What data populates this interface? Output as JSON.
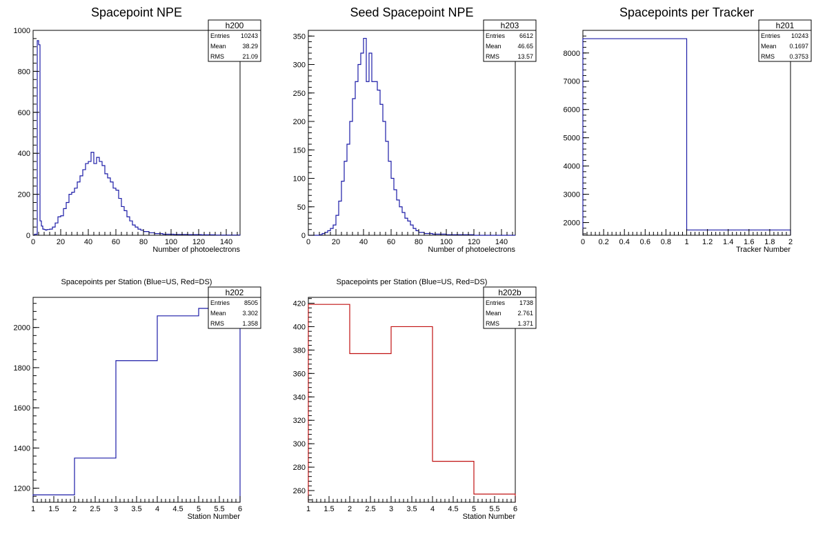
{
  "chart_data": [
    {
      "type": "histogram",
      "title": "Spacepoint NPE",
      "xlabel": "Number of photoelectrons",
      "ylabel": "",
      "xlim": [
        0,
        150
      ],
      "ylim": [
        0,
        1000
      ],
      "xticks": [
        0,
        20,
        40,
        60,
        80,
        100,
        120,
        140
      ],
      "yticks": [
        0,
        200,
        400,
        600,
        800,
        1000
      ],
      "color": "#1a1aa6",
      "stats": {
        "name": "h200",
        "rows": [
          [
            "Entries",
            "10243"
          ],
          [
            "Mean",
            "38.29"
          ],
          [
            "RMS",
            "21.09"
          ]
        ]
      },
      "bin_width": 1,
      "series": [
        {
          "bins": [
            [
              0,
              1,
              0
            ],
            [
              1,
              3,
              5
            ],
            [
              3,
              4,
              950
            ],
            [
              4,
              5,
              930
            ],
            [
              5,
              6,
              70
            ],
            [
              6,
              7,
              45
            ],
            [
              7,
              8,
              30
            ],
            [
              8,
              9,
              28
            ],
            [
              9,
              10,
              25
            ],
            [
              10,
              12,
              28
            ],
            [
              12,
              14,
              30
            ],
            [
              14,
              16,
              40
            ],
            [
              16,
              18,
              60
            ],
            [
              18,
              20,
              90
            ],
            [
              20,
              22,
              95
            ],
            [
              22,
              24,
              130
            ],
            [
              24,
              26,
              160
            ],
            [
              26,
              28,
              200
            ],
            [
              28,
              30,
              210
            ],
            [
              30,
              32,
              230
            ],
            [
              32,
              34,
              260
            ],
            [
              34,
              36,
              290
            ],
            [
              36,
              38,
              320
            ],
            [
              38,
              40,
              350
            ],
            [
              40,
              42,
              360
            ],
            [
              42,
              44,
              405
            ],
            [
              44,
              46,
              350
            ],
            [
              46,
              48,
              380
            ],
            [
              48,
              50,
              360
            ],
            [
              50,
              52,
              340
            ],
            [
              52,
              54,
              300
            ],
            [
              54,
              56,
              280
            ],
            [
              56,
              58,
              260
            ],
            [
              58,
              60,
              230
            ],
            [
              60,
              62,
              220
            ],
            [
              62,
              64,
              180
            ],
            [
              64,
              66,
              140
            ],
            [
              66,
              68,
              120
            ],
            [
              68,
              70,
              90
            ],
            [
              70,
              72,
              70
            ],
            [
              72,
              74,
              50
            ],
            [
              74,
              76,
              40
            ],
            [
              76,
              78,
              30
            ],
            [
              78,
              80,
              25
            ],
            [
              80,
              84,
              18
            ],
            [
              84,
              88,
              12
            ],
            [
              88,
              94,
              8
            ],
            [
              94,
              102,
              5
            ],
            [
              102,
              112,
              4
            ],
            [
              112,
              122,
              3
            ],
            [
              122,
              132,
              2
            ],
            [
              132,
              150,
              1
            ]
          ]
        }
      ]
    },
    {
      "type": "histogram",
      "title": "Seed Spacepoint NPE",
      "xlabel": "Number of photoelectrons",
      "ylabel": "",
      "xlim": [
        0,
        150
      ],
      "ylim": [
        0,
        360
      ],
      "xticks": [
        0,
        20,
        40,
        60,
        80,
        100,
        120,
        140
      ],
      "yticks": [
        0,
        50,
        100,
        150,
        200,
        250,
        300,
        350
      ],
      "color": "#1a1aa6",
      "stats": {
        "name": "h203",
        "rows": [
          [
            "Entries",
            "6612"
          ],
          [
            "Mean",
            "46.65"
          ],
          [
            "RMS",
            "13.57"
          ]
        ]
      },
      "series": [
        {
          "bins": [
            [
              0,
              8,
              0
            ],
            [
              8,
              10,
              1
            ],
            [
              10,
              12,
              3
            ],
            [
              12,
              14,
              5
            ],
            [
              14,
              16,
              8
            ],
            [
              16,
              18,
              12
            ],
            [
              18,
              20,
              18
            ],
            [
              20,
              22,
              35
            ],
            [
              22,
              24,
              60
            ],
            [
              24,
              26,
              95
            ],
            [
              26,
              28,
              130
            ],
            [
              28,
              30,
              160
            ],
            [
              30,
              32,
              200
            ],
            [
              32,
              34,
              240
            ],
            [
              34,
              36,
              270
            ],
            [
              36,
              38,
              300
            ],
            [
              38,
              40,
              320
            ],
            [
              40,
              42,
              346
            ],
            [
              42,
              44,
              270
            ],
            [
              44,
              46,
              320
            ],
            [
              46,
              48,
              270
            ],
            [
              48,
              50,
              270
            ],
            [
              50,
              52,
              255
            ],
            [
              52,
              54,
              230
            ],
            [
              54,
              56,
              200
            ],
            [
              56,
              58,
              165
            ],
            [
              58,
              60,
              130
            ],
            [
              60,
              62,
              100
            ],
            [
              62,
              64,
              80
            ],
            [
              64,
              66,
              62
            ],
            [
              66,
              68,
              50
            ],
            [
              68,
              70,
              40
            ],
            [
              70,
              72,
              30
            ],
            [
              72,
              74,
              25
            ],
            [
              74,
              76,
              18
            ],
            [
              76,
              78,
              12
            ],
            [
              78,
              80,
              8
            ],
            [
              80,
              84,
              5
            ],
            [
              84,
              90,
              3
            ],
            [
              90,
              100,
              2
            ],
            [
              100,
              120,
              1
            ],
            [
              120,
              150,
              0
            ]
          ]
        }
      ]
    },
    {
      "type": "histogram",
      "title": "Spacepoints per Tracker",
      "xlabel": "Tracker Number",
      "ylabel": "",
      "xlim": [
        0,
        2
      ],
      "ylim": [
        1550,
        8800
      ],
      "xticks": [
        0,
        0.2,
        0.4,
        0.6,
        0.8,
        1,
        1.2,
        1.4,
        1.6,
        1.8,
        2
      ],
      "yticks": [
        2000,
        3000,
        4000,
        5000,
        6000,
        7000,
        8000
      ],
      "color": "#1a1aa6",
      "stats": {
        "name": "h201",
        "rows": [
          [
            "Entries",
            "10243"
          ],
          [
            "Mean",
            "0.1697"
          ],
          [
            "RMS",
            "0.3753"
          ]
        ]
      },
      "series": [
        {
          "bins": [
            [
              0,
              1,
              8505
            ],
            [
              1,
              2,
              1738
            ]
          ]
        }
      ]
    },
    {
      "type": "histogram",
      "title": "Spacepoints per Station (Blue=US, Red=DS)",
      "xlabel": "Station Number",
      "ylabel": "",
      "xlim": [
        1,
        6
      ],
      "ylim": [
        1130,
        2150
      ],
      "xticks": [
        1,
        1.5,
        2,
        2.5,
        3,
        3.5,
        4,
        4.5,
        5,
        5.5,
        6
      ],
      "yticks": [
        1200,
        1400,
        1600,
        1800,
        2000
      ],
      "color": "#1a1aa6",
      "stats": {
        "name": "h202",
        "rows": [
          [
            "Entries",
            "8505"
          ],
          [
            "Mean",
            "3.302"
          ],
          [
            "RMS",
            "1.358"
          ]
        ]
      },
      "series": [
        {
          "bins": [
            [
              1,
              2,
              1167
            ],
            [
              2,
              3,
              1350
            ],
            [
              3,
              4,
              1835
            ],
            [
              4,
              5,
              2058
            ],
            [
              5,
              6,
              2095
            ]
          ]
        }
      ]
    },
    {
      "type": "histogram",
      "title": "Spacepoints per Station (Blue=US, Red=DS)",
      "xlabel": "Station Number",
      "ylabel": "",
      "xlim": [
        1,
        6
      ],
      "ylim": [
        250,
        425
      ],
      "xticks": [
        1,
        1.5,
        2,
        2.5,
        3,
        3.5,
        4,
        4.5,
        5,
        5.5,
        6
      ],
      "yticks": [
        260,
        280,
        300,
        320,
        340,
        360,
        380,
        400,
        420
      ],
      "color": "#c01010",
      "stats": {
        "name": "h202b",
        "rows": [
          [
            "Entries",
            "1738"
          ],
          [
            "Mean",
            "2.761"
          ],
          [
            "RMS",
            "1.371"
          ]
        ]
      },
      "series": [
        {
          "bins": [
            [
              1,
              2,
              419
            ],
            [
              2,
              3,
              377
            ],
            [
              3,
              4,
              400
            ],
            [
              4,
              5,
              285
            ],
            [
              5,
              6,
              257
            ]
          ]
        }
      ]
    }
  ]
}
